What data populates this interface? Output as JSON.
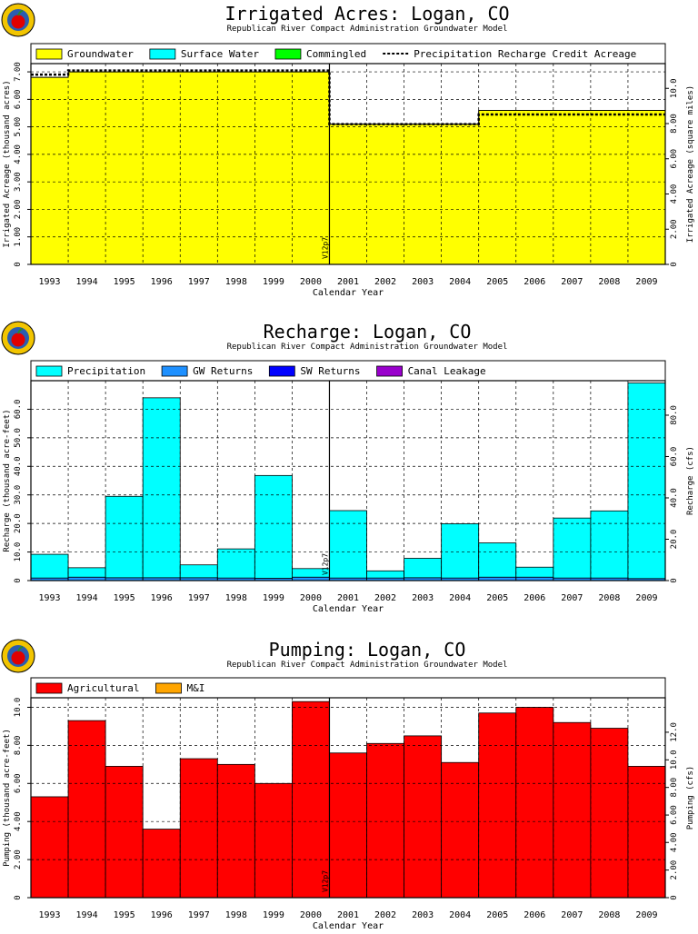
{
  "chart_data": [
    {
      "type": "area",
      "title": "Irrigated Acres: Logan, CO",
      "subtitle": "Republican River Compact Administration Groundwater Model",
      "xlabel": "Calendar Year",
      "ylabel": "Irrigated Acreage (thousand acres)",
      "y2label": "Irrigated Acreage (square miles)",
      "categories": [
        "1993",
        "1994",
        "1995",
        "1996",
        "1997",
        "1998",
        "1999",
        "2000",
        "2001",
        "2002",
        "2003",
        "2004",
        "2005",
        "2006",
        "2007",
        "2008",
        "2009"
      ],
      "ylim": [
        0,
        7.3
      ],
      "yticks": [
        {
          "label": "0",
          "value": 0
        },
        {
          "label": "1.00",
          "value": 1
        },
        {
          "label": "2.00",
          "value": 2
        },
        {
          "label": "3.00",
          "value": 3
        },
        {
          "label": "4.00",
          "value": 4
        },
        {
          "label": "5.00",
          "value": 5
        },
        {
          "label": "6.00",
          "value": 6
        },
        {
          "label": "7.00",
          "value": 7
        }
      ],
      "y2ticks": [
        {
          "label": "0",
          "value": 0
        },
        {
          "label": "2.00",
          "value": 1.28
        },
        {
          "label": "4.00",
          "value": 2.56
        },
        {
          "label": "6.00",
          "value": 3.84
        },
        {
          "label": "8.00",
          "value": 5.12
        },
        {
          "label": "10.0",
          "value": 6.4
        }
      ],
      "series": [
        {
          "name": "Groundwater",
          "color": "#ffff00",
          "style": "fill",
          "values": [
            6.8,
            7.0,
            7.0,
            7.0,
            7.0,
            7.0,
            7.0,
            7.0,
            5.1,
            5.1,
            5.1,
            5.1,
            5.6,
            5.6,
            5.6,
            5.6,
            5.6
          ]
        },
        {
          "name": "Surface Water",
          "color": "#00ffff",
          "style": "fill",
          "values": [
            0,
            0,
            0,
            0,
            0,
            0,
            0,
            0,
            0,
            0,
            0,
            0,
            0,
            0,
            0,
            0,
            0
          ]
        },
        {
          "name": "Commingled",
          "color": "#00ff00",
          "style": "fill",
          "values": [
            0,
            0,
            0,
            0,
            0,
            0,
            0,
            0,
            0,
            0,
            0,
            0,
            0,
            0,
            0,
            0,
            0
          ]
        },
        {
          "name": "Precipitation Recharge Credit Acreage",
          "color": "#000000",
          "style": "dash",
          "values": [
            6.9,
            7.05,
            7.05,
            7.05,
            7.05,
            7.05,
            7.05,
            7.05,
            5.1,
            5.1,
            5.1,
            5.1,
            5.45,
            5.45,
            5.45,
            5.45,
            5.45
          ]
        }
      ],
      "annotation": "V12p7"
    },
    {
      "type": "bar",
      "title": "Recharge: Logan, CO",
      "subtitle": "Republican River Compact Administration Groundwater Model",
      "xlabel": "Calendar Year",
      "ylabel": "Recharge (thousand acre-feet)",
      "y2label": "Recharge (cfs)",
      "categories": [
        "1993",
        "1994",
        "1995",
        "1996",
        "1997",
        "1998",
        "1999",
        "2000",
        "2001",
        "2002",
        "2003",
        "2004",
        "2005",
        "2006",
        "2007",
        "2008",
        "2009"
      ],
      "ylim": [
        0,
        70
      ],
      "yticks": [
        {
          "label": "0",
          "value": 0
        },
        {
          "label": "10.0",
          "value": 10
        },
        {
          "label": "20.0",
          "value": 20
        },
        {
          "label": "30.0",
          "value": 30
        },
        {
          "label": "40.0",
          "value": 40
        },
        {
          "label": "50.0",
          "value": 50
        },
        {
          "label": "60.0",
          "value": 60
        }
      ],
      "y2ticks": [
        {
          "label": "0",
          "value": 0
        },
        {
          "label": "20.0",
          "value": 14.48
        },
        {
          "label": "40.0",
          "value": 28.96
        },
        {
          "label": "60.0",
          "value": 43.44
        },
        {
          "label": "80.0",
          "value": 57.92
        }
      ],
      "series": [
        {
          "name": "Precipitation",
          "color": "#00ffff",
          "values": [
            8.3,
            3.3,
            28.5,
            63.0,
            4.5,
            10.2,
            36.0,
            3.0,
            23.6,
            2.5,
            6.8,
            19.0,
            12.0,
            3.5,
            21.0,
            23.5,
            68.5
          ]
        },
        {
          "name": "GW Returns",
          "color": "#1e90ff",
          "values": [
            0.9,
            1.2,
            1.0,
            1.0,
            1.0,
            0.9,
            0.8,
            1.2,
            0.9,
            0.9,
            1.0,
            0.9,
            1.2,
            1.2,
            0.9,
            0.9,
            0.7
          ]
        },
        {
          "name": "SW Returns",
          "color": "#0000ff",
          "values": [
            0,
            0,
            0,
            0,
            0,
            0,
            0,
            0,
            0,
            0,
            0,
            0,
            0,
            0,
            0,
            0,
            0
          ]
        },
        {
          "name": "Canal Leakage",
          "color": "#9900cc",
          "values": [
            0,
            0,
            0,
            0,
            0,
            0,
            0,
            0,
            0,
            0,
            0,
            0,
            0,
            0,
            0,
            0,
            0
          ]
        }
      ],
      "annotation": "V12p7"
    },
    {
      "type": "bar",
      "title": "Pumping: Logan, CO",
      "subtitle": "Republican River Compact Administration Groundwater Model",
      "xlabel": "Calendar Year",
      "ylabel": "Pumping (thousand acre-feet)",
      "y2label": "Pumping (cfs)",
      "categories": [
        "1993",
        "1994",
        "1995",
        "1996",
        "1997",
        "1998",
        "1999",
        "2000",
        "2001",
        "2002",
        "2003",
        "2004",
        "2005",
        "2006",
        "2007",
        "2008",
        "2009"
      ],
      "ylim": [
        0,
        10.5
      ],
      "yticks": [
        {
          "label": "0",
          "value": 0
        },
        {
          "label": "2.00",
          "value": 2
        },
        {
          "label": "4.00",
          "value": 4
        },
        {
          "label": "6.00",
          "value": 6
        },
        {
          "label": "8.00",
          "value": 8
        },
        {
          "label": "10.0",
          "value": 10
        }
      ],
      "y2ticks": [
        {
          "label": "0",
          "value": 0
        },
        {
          "label": "2.00",
          "value": 1.45
        },
        {
          "label": "4.00",
          "value": 2.9
        },
        {
          "label": "6.00",
          "value": 4.34
        },
        {
          "label": "8.00",
          "value": 5.79
        },
        {
          "label": "10.0",
          "value": 7.24
        },
        {
          "label": "12.0",
          "value": 8.69
        }
      ],
      "series": [
        {
          "name": "Agricultural",
          "color": "#ff0000",
          "values": [
            5.3,
            9.3,
            6.9,
            3.6,
            7.3,
            7.0,
            6.0,
            10.3,
            7.6,
            8.1,
            8.5,
            7.1,
            9.7,
            10.0,
            9.2,
            8.9,
            6.9
          ]
        },
        {
          "name": "M&I",
          "color": "#ffa500",
          "values": [
            0,
            0,
            0,
            0,
            0,
            0,
            0,
            0,
            0,
            0,
            0,
            0,
            0,
            0,
            0,
            0,
            0
          ]
        }
      ],
      "annotation": "V12p7"
    }
  ]
}
